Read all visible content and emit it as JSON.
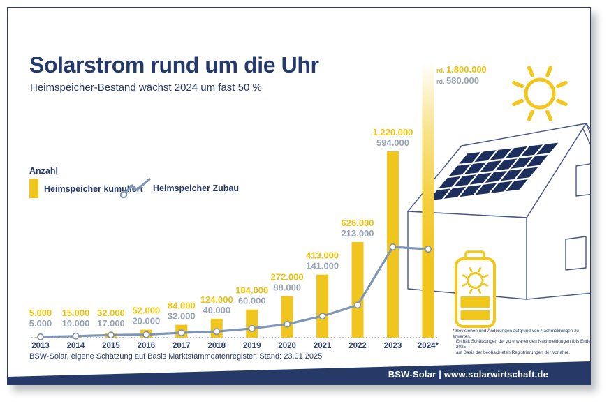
{
  "card": {
    "title": "Solarstrom rund um die Uhr",
    "subtitle": "Heimspeicher-Bestand wächst 2024 um fast 50 %",
    "source": "BSW-Solar, eigene Schätzung auf Basis Marktstammdatenregister, Stand: 23.01.2025",
    "footnote_lines": [
      "* Revisionen und Änderungen aufgrund von Nachmeldungen zu erwarten.",
      "Enthält Schätzungen der zu erwartenden Nachmeldungen (bis Ende 2025)",
      "auf Basis der beobachteten Registrierungen der Vorjahre."
    ],
    "footer": "BSW-Solar | www.solarwirtschaft.de"
  },
  "legend": {
    "axis_label": "Anzahl",
    "items": [
      {
        "label": "Heimspeicher kumuliert",
        "swatch": "bar"
      },
      {
        "label": "Heimspeicher Zubau",
        "swatch": "line"
      }
    ]
  },
  "colors": {
    "navy": "#253A6B",
    "band_navy": "#253A66",
    "bar_yellow": "#F0C51E",
    "icon_yellow": "#F2C71B",
    "label_yellow": "#EFC10A",
    "label_gray": "#97A4B6",
    "line_slate": "#7E97B7",
    "house_line": "#46558B",
    "panel_navy": "#1C2E5C"
  },
  "chart_data": {
    "type": "bar",
    "subtype": "bar+line combo",
    "categories": [
      "2013",
      "2014",
      "2015",
      "2016",
      "2017",
      "2018",
      "2019",
      "2020",
      "2021",
      "2022",
      "2023",
      "2024*"
    ],
    "series": [
      {
        "name": "Heimspeicher kumuliert",
        "type": "bar",
        "color": "#F0C51E",
        "values": [
          5000,
          15000,
          32000,
          52000,
          84000,
          124000,
          184000,
          272000,
          413000,
          626000,
          1220000,
          1800000
        ],
        "labels": [
          "5.000",
          "15.000",
          "32.000",
          "52.000",
          "84.000",
          "124.000",
          "184.000",
          "272.000",
          "413.000",
          "626.000",
          "1.220.000",
          "rd. 1.800.000"
        ]
      },
      {
        "name": "Heimspeicher Zubau",
        "type": "line",
        "color": "#7E97B7",
        "values": [
          5000,
          10000,
          17000,
          20000,
          32000,
          40000,
          60000,
          88000,
          141000,
          213000,
          594000,
          580000
        ],
        "labels": [
          "5.000",
          "10.000",
          "17.000",
          "20.000",
          "32.000",
          "40.000",
          "60.000",
          "88.000",
          "141.000",
          "213.000",
          "594.000",
          "rd. 580.000"
        ]
      }
    ],
    "title": "Solarstrom rund um die Uhr",
    "xlabel": "",
    "ylabel": "Anzahl",
    "ylim": [
      0,
      1800000
    ],
    "grid": false,
    "legend_position": "left-middle",
    "baseline": "dotted"
  }
}
